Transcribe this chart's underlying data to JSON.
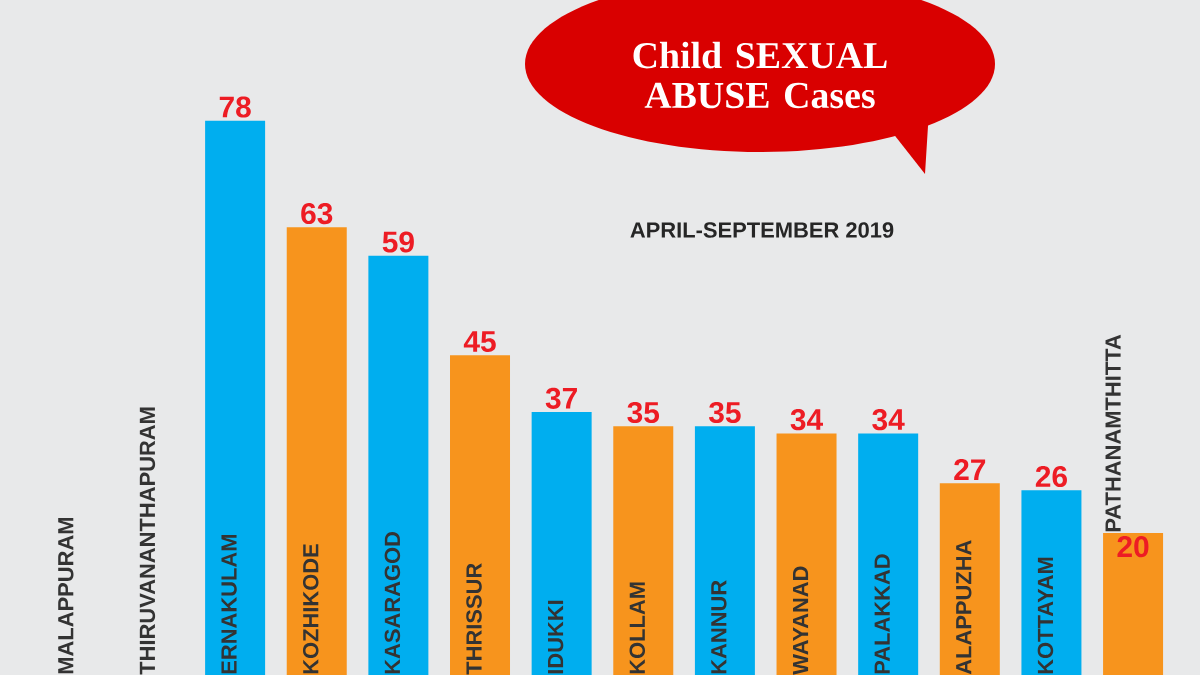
{
  "chart_data": {
    "type": "bar",
    "title": "Child SEXUAL ABUSE Cases",
    "subtitle": "APRIL-SEPTEMBER 2019",
    "categories": [
      "MALAPPURAM",
      "THIRUVANANTHAPURAM",
      "ERNAKULAM",
      "KOZHIKODE",
      "KASARAGOD",
      "THRISSUR",
      "IDUKKI",
      "KOLLAM",
      "KANNUR",
      "WAYANAD",
      "PALAKKAD",
      "ALAPPUZHA",
      "KOTTAYAM",
      "PATHANAMTHITTA"
    ],
    "values": [
      null,
      null,
      78,
      63,
      59,
      45,
      37,
      35,
      35,
      34,
      34,
      27,
      26,
      20
    ],
    "colors": [
      "#00aeef",
      "#f7941d",
      "#00aeef",
      "#f7941d",
      "#00aeef",
      "#f7941d",
      "#00aeef",
      "#f7941d",
      "#00aeef",
      "#f7941d",
      "#00aeef",
      "#f7941d",
      "#00aeef",
      "#f7941d"
    ],
    "ylim": [
      0,
      95
    ],
    "data_labels": true
  }
}
